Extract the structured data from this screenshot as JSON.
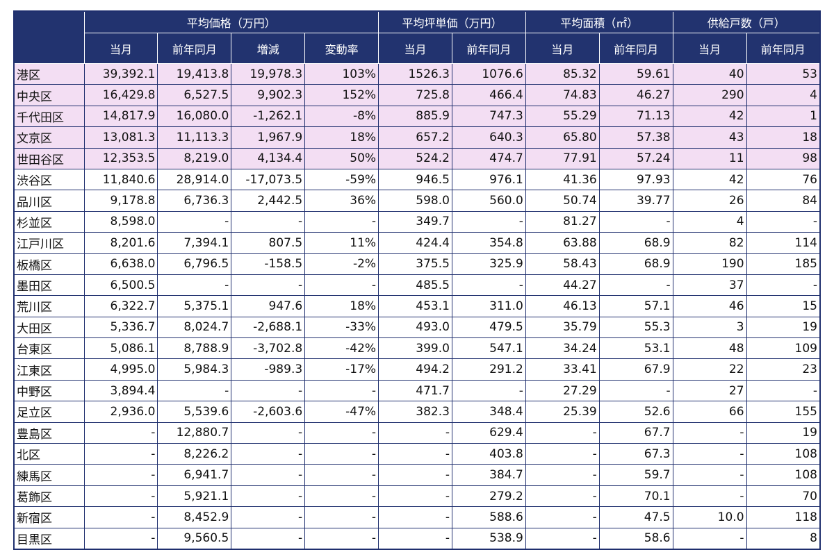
{
  "table": {
    "group_headers": [
      "平均価格（万円）",
      "平均坪単価（万円）",
      "平均面積（㎡）",
      "供給戸数（戸）"
    ],
    "sub_headers": [
      "当月",
      "前年同月",
      "増減",
      "変動率",
      "当月",
      "前年同月",
      "当月",
      "前年同月",
      "当月",
      "前年同月"
    ],
    "rows": [
      [
        "港区",
        "39,392.1",
        "19,413.8",
        "19,978.3",
        "103%",
        "1526.3",
        "1076.6",
        "85.32",
        "59.61",
        "40",
        "53"
      ],
      [
        "中央区",
        "16,429.8",
        "6,527.5",
        "9,902.3",
        "152%",
        "725.8",
        "466.4",
        "74.83",
        "46.27",
        "290",
        "4"
      ],
      [
        "千代田区",
        "14,817.9",
        "16,080.0",
        "-1,262.1",
        "-8%",
        "885.9",
        "747.3",
        "55.29",
        "71.13",
        "42",
        "1"
      ],
      [
        "文京区",
        "13,081.3",
        "11,113.3",
        "1,967.9",
        "18%",
        "657.2",
        "640.3",
        "65.80",
        "57.38",
        "43",
        "18"
      ],
      [
        "世田谷区",
        "12,353.5",
        "8,219.0",
        "4,134.4",
        "50%",
        "524.2",
        "474.7",
        "77.91",
        "57.24",
        "11",
        "98"
      ],
      [
        "渋谷区",
        "11,840.6",
        "28,914.0",
        "-17,073.5",
        "-59%",
        "946.5",
        "976.1",
        "41.36",
        "97.93",
        "42",
        "76"
      ],
      [
        "品川区",
        "9,178.8",
        "6,736.3",
        "2,442.5",
        "36%",
        "598.0",
        "560.0",
        "50.74",
        "39.77",
        "26",
        "84"
      ],
      [
        "杉並区",
        "8,598.0",
        "-",
        "-",
        "-",
        "349.7",
        "-",
        "81.27",
        "-",
        "4",
        "-"
      ],
      [
        "江戸川区",
        "8,201.6",
        "7,394.1",
        "807.5",
        "11%",
        "424.4",
        "354.8",
        "63.88",
        "68.9",
        "82",
        "114"
      ],
      [
        "板橋区",
        "6,638.0",
        "6,796.5",
        "-158.5",
        "-2%",
        "375.5",
        "325.9",
        "58.43",
        "68.9",
        "190",
        "185"
      ],
      [
        "墨田区",
        "6,500.5",
        "-",
        "-",
        "-",
        "485.5",
        "-",
        "44.27",
        "-",
        "37",
        "-"
      ],
      [
        "荒川区",
        "6,322.7",
        "5,375.1",
        "947.6",
        "18%",
        "453.1",
        "311.0",
        "46.13",
        "57.1",
        "46",
        "15"
      ],
      [
        "大田区",
        "5,336.7",
        "8,024.7",
        "-2,688.1",
        "-33%",
        "493.0",
        "479.5",
        "35.79",
        "55.3",
        "3",
        "19"
      ],
      [
        "台東区",
        "5,086.1",
        "8,788.9",
        "-3,702.8",
        "-42%",
        "399.0",
        "547.1",
        "34.24",
        "53.1",
        "48",
        "109"
      ],
      [
        "江東区",
        "4,995.0",
        "5,984.3",
        "-989.3",
        "-17%",
        "494.2",
        "291.2",
        "33.41",
        "67.9",
        "22",
        "23"
      ],
      [
        "中野区",
        "3,894.4",
        "-",
        "-",
        "-",
        "471.7",
        "-",
        "27.29",
        "-",
        "27",
        "-"
      ],
      [
        "足立区",
        "2,936.0",
        "5,539.6",
        "-2,603.6",
        "-47%",
        "382.3",
        "348.4",
        "25.39",
        "52.6",
        "66",
        "155"
      ],
      [
        "豊島区",
        "-",
        "12,880.7",
        "-",
        "-",
        "-",
        "629.4",
        "-",
        "67.7",
        "-",
        "19"
      ],
      [
        "北区",
        "-",
        "8,226.2",
        "-",
        "-",
        "-",
        "403.8",
        "-",
        "67.3",
        "-",
        "108"
      ],
      [
        "練馬区",
        "-",
        "6,941.7",
        "-",
        "-",
        "-",
        "384.7",
        "-",
        "59.7",
        "-",
        "108"
      ],
      [
        "葛飾区",
        "-",
        "5,921.1",
        "-",
        "-",
        "-",
        "279.2",
        "-",
        "70.1",
        "-",
        "70"
      ],
      [
        "新宿区",
        "-",
        "8,452.9",
        "-",
        "-",
        "-",
        "588.6",
        "-",
        "47.5",
        "10.0",
        "118"
      ],
      [
        "目黒区",
        "-",
        "9,560.5",
        "-",
        "-",
        "-",
        "538.9",
        "-",
        "58.6",
        "-",
        "8"
      ]
    ]
  }
}
